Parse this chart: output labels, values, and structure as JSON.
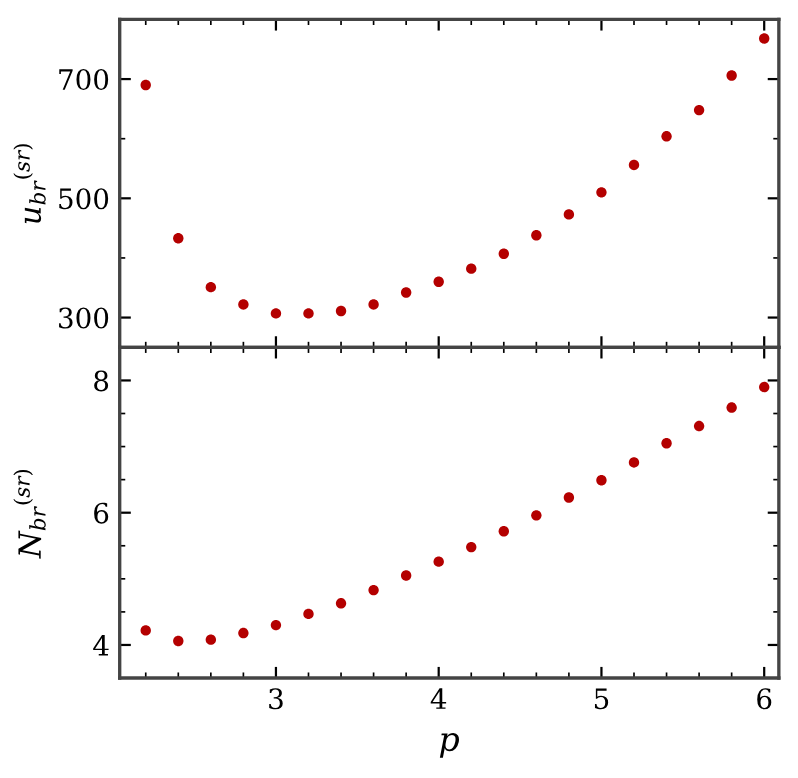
{
  "chart_data": [
    {
      "type": "scatter",
      "ylabel": "u$_{br}$$^{(sr)}$",
      "x": [
        2.2,
        2.4,
        2.6,
        2.8,
        3.0,
        3.2,
        3.4,
        3.6,
        3.8,
        4.0,
        4.2,
        4.4,
        4.6,
        4.8,
        5.0,
        5.2,
        5.4,
        5.6,
        5.8,
        6.0
      ],
      "series": [
        {
          "color": "#b40000",
          "values": [
            690,
            433,
            351,
            322,
            307,
            307,
            311,
            322,
            342,
            360,
            382,
            407,
            438,
            473,
            510,
            556,
            604,
            648,
            706,
            768
          ]
        }
      ],
      "xlim": [
        2.04,
        6.09
      ],
      "xticks": [
        {
          "value": 3,
          "label": null
        },
        {
          "value": 4,
          "label": null
        },
        {
          "value": 5,
          "label": null
        },
        {
          "value": 6,
          "label": null
        }
      ],
      "ylim": [
        250,
        800
      ],
      "yticks": [
        300,
        500,
        700
      ],
      "tick_labels": "y",
      "marker": "circle",
      "grid": false,
      "legend": false
    },
    {
      "type": "scatter",
      "xlabel": "p",
      "ylabel": "N$_{br}$$^{(sr)}$",
      "x": [
        2.2,
        2.4,
        2.6,
        2.8,
        3.0,
        3.2,
        3.4,
        3.6,
        3.8,
        4.0,
        4.2,
        4.4,
        4.6,
        4.8,
        5.0,
        5.2,
        5.4,
        5.6,
        5.8,
        6.0
      ],
      "series": [
        {
          "color": "#b40000",
          "values": [
            4.22,
            4.06,
            4.08,
            4.18,
            4.3,
            4.47,
            4.63,
            4.83,
            5.05,
            5.26,
            5.48,
            5.72,
            5.96,
            6.23,
            6.49,
            6.76,
            7.05,
            7.31,
            7.59,
            7.9
          ]
        }
      ],
      "xlim": [
        2.04,
        6.09
      ],
      "xticks": [
        3,
        4,
        5,
        6
      ],
      "ylim": [
        3.5,
        8.5
      ],
      "yticks": [
        4,
        6,
        8
      ],
      "marker": "circle",
      "grid": false,
      "legend": false
    }
  ]
}
